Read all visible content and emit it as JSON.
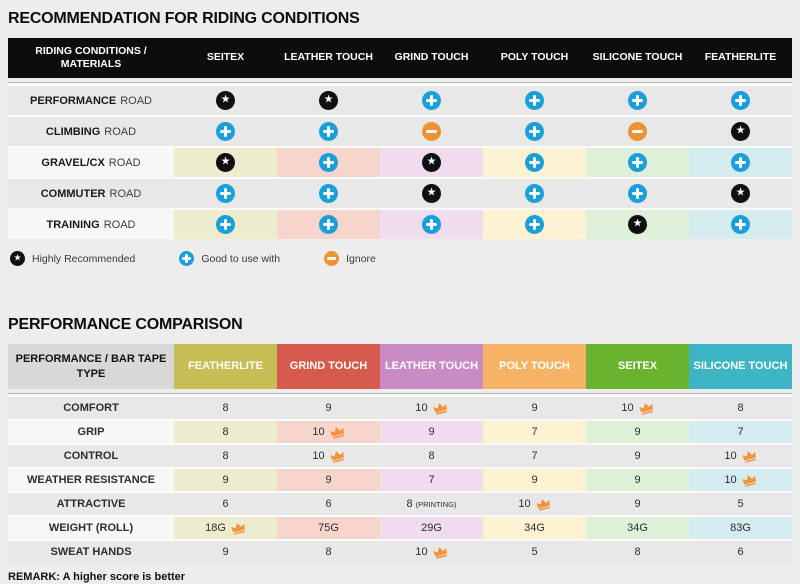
{
  "section1": {
    "title": "RECOMMENDATION FOR RIDING CONDITIONS",
    "table": {
      "corner": "RIDING CONDITIONS / MATERIALS",
      "columns": [
        "SEITEX",
        "LEATHER TOUCH",
        "GRIND TOUCH",
        "POLY TOUCH",
        "SILICONE TOUCH",
        "FEATHERLITE"
      ],
      "rows": [
        {
          "label_main": "PERFORMANCE",
          "label_rest": "ROAD",
          "colored": false,
          "cells": [
            "star",
            "star",
            "plus",
            "plus",
            "plus",
            "plus"
          ]
        },
        {
          "label_main": "CLIMBING",
          "label_rest": "ROAD",
          "colored": false,
          "cells": [
            "plus",
            "plus",
            "minus",
            "plus",
            "minus",
            "star"
          ]
        },
        {
          "label_main": "GRAVEL/CX",
          "label_rest": "ROAD",
          "colored": true,
          "cells": [
            "star",
            "plus",
            "star",
            "plus",
            "plus",
            "plus"
          ]
        },
        {
          "label_main": "COMMUTER",
          "label_rest": "ROAD",
          "colored": false,
          "cells": [
            "plus",
            "plus",
            "star",
            "plus",
            "plus",
            "star"
          ]
        },
        {
          "label_main": "TRAINING",
          "label_rest": "ROAD",
          "colored": true,
          "cells": [
            "plus",
            "plus",
            "plus",
            "plus",
            "star",
            "plus"
          ]
        }
      ]
    },
    "legend": [
      {
        "icon": "star",
        "label": "Highly Recommended"
      },
      {
        "icon": "plus",
        "label": "Good to use with"
      },
      {
        "icon": "minus",
        "label": "Ignore"
      }
    ]
  },
  "section2": {
    "title": "PERFORMANCE COMPARISON",
    "table": {
      "corner": "PERFORMANCE / BAR TAPE TYPE",
      "columns": [
        {
          "label": "FEATHERLITE",
          "color": "#c6bd55"
        },
        {
          "label": "GRIND TOUCH",
          "color": "#d65b4c"
        },
        {
          "label": "LEATHER TOUCH",
          "color": "#c88bc4"
        },
        {
          "label": "POLY TOUCH",
          "color": "#f6b366"
        },
        {
          "label": "SEITEX",
          "color": "#6ab32f"
        },
        {
          "label": "SILICONE TOUCH",
          "color": "#3db5c3"
        }
      ],
      "rows": [
        {
          "label": "COMFORT",
          "colored": false,
          "cells": [
            {
              "v": "8"
            },
            {
              "v": "9"
            },
            {
              "v": "10",
              "crown": true
            },
            {
              "v": "9"
            },
            {
              "v": "10",
              "crown": true
            },
            {
              "v": "8"
            }
          ]
        },
        {
          "label": "GRIP",
          "colored": true,
          "cells": [
            {
              "v": "8"
            },
            {
              "v": "10",
              "crown": true
            },
            {
              "v": "9"
            },
            {
              "v": "7"
            },
            {
              "v": "9"
            },
            {
              "v": "7"
            }
          ]
        },
        {
          "label": "CONTROL",
          "colored": false,
          "cells": [
            {
              "v": "8"
            },
            {
              "v": "10",
              "crown": true
            },
            {
              "v": "8"
            },
            {
              "v": "7"
            },
            {
              "v": "9"
            },
            {
              "v": "10",
              "crown": true
            }
          ]
        },
        {
          "label": "WEATHER RESISTANCE",
          "colored": true,
          "cells": [
            {
              "v": "9"
            },
            {
              "v": "9"
            },
            {
              "v": "7"
            },
            {
              "v": "9"
            },
            {
              "v": "9"
            },
            {
              "v": "10",
              "crown": true
            }
          ]
        },
        {
          "label": "ATTRACTIVE",
          "colored": false,
          "cells": [
            {
              "v": "6"
            },
            {
              "v": "6"
            },
            {
              "v": "8",
              "suffix": "(PRINTING)"
            },
            {
              "v": "10",
              "crown": true
            },
            {
              "v": "9"
            },
            {
              "v": "5"
            }
          ]
        },
        {
          "label": "WEIGHT (ROLL)",
          "colored": true,
          "cells": [
            {
              "v": "18G",
              "crown": true
            },
            {
              "v": "75G"
            },
            {
              "v": "29G"
            },
            {
              "v": "34G"
            },
            {
              "v": "34G"
            },
            {
              "v": "83G"
            }
          ]
        },
        {
          "label": "SWEAT HANDS",
          "colored": false,
          "cells": [
            {
              "v": "9"
            },
            {
              "v": "8"
            },
            {
              "v": "10",
              "crown": true
            },
            {
              "v": "5"
            },
            {
              "v": "8"
            },
            {
              "v": "6"
            }
          ]
        }
      ]
    },
    "remark": "REMARK: A higher score is better"
  },
  "colors": {
    "plus": "#1b9fd9",
    "minus": "#ec9333",
    "star_bg": "#101010",
    "crown": "#f0953b",
    "row_gray": "#e8e8e8",
    "header_black": "#0d0d0d",
    "pale": [
      "#eeecce",
      "#f6d5cd",
      "#f1dbee",
      "#fdf3d2",
      "#def0d8",
      "#d5ecef"
    ]
  }
}
